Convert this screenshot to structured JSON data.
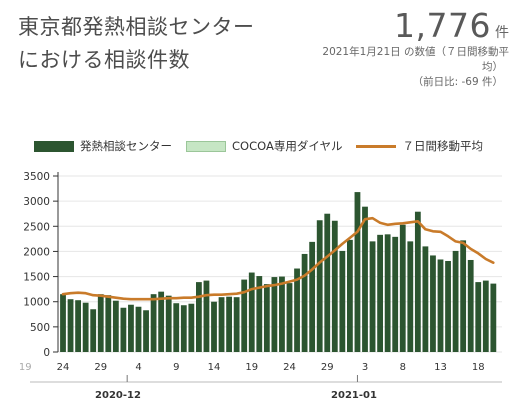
{
  "header": {
    "title_line1": "東京都発熱相談センター",
    "title_line2": "における相談件数"
  },
  "summary": {
    "value": "1,776",
    "unit": "件",
    "note_line1": "2021年1月21日 の数値（７日間移動平",
    "note_line2": "均）",
    "note_line3": "（前日比: -69 件）"
  },
  "legend": {
    "series1": "発熱相談センター",
    "series2": "COCOA専用ダイヤル",
    "series3": "７日間移動平均"
  },
  "colors": {
    "bar": "#2c5530",
    "bar_cocoa": "#c6e6c4",
    "avg_line": "#c97b2a",
    "grid": "#e6e6e6"
  },
  "chart_data": {
    "type": "bar",
    "y_ticks": [
      "0",
      "500",
      "1000",
      "1500",
      "2000",
      "2500",
      "3000",
      "3500"
    ],
    "ylim": [
      0,
      3500
    ],
    "x_tick_labels": [
      "19",
      "24",
      "29",
      "4",
      "9",
      "14",
      "19",
      "24",
      "29",
      "3",
      "8",
      "13",
      "18"
    ],
    "month_labels": [
      "2020-12",
      "2021-01"
    ],
    "series": [
      {
        "name": "発熱相談センター",
        "values": [
          1150,
          1050,
          1030,
          980,
          850,
          1150,
          1130,
          1020,
          880,
          940,
          900,
          830,
          1150,
          1200,
          1120,
          970,
          930,
          960,
          1390,
          1420,
          1000,
          1090,
          1100,
          1090,
          1440,
          1580,
          1510,
          1350,
          1490,
          1500,
          1370,
          1660,
          1950,
          2190,
          2620,
          2750,
          2610,
          2010,
          2230,
          3180,
          2890,
          2200,
          2330,
          2340,
          2290,
          2530,
          2200,
          2790,
          2100,
          1920,
          1840,
          1810,
          2010,
          2220,
          1830,
          1390,
          1420,
          1360
        ]
      },
      {
        "name": "７日間移動平均",
        "values": [
          1150,
          1170,
          1180,
          1170,
          1130,
          1120,
          1100,
          1080,
          1060,
          1050,
          1050,
          1050,
          1050,
          1060,
          1070,
          1070,
          1080,
          1080,
          1100,
          1130,
          1140,
          1140,
          1150,
          1160,
          1190,
          1250,
          1280,
          1310,
          1330,
          1360,
          1400,
          1440,
          1520,
          1640,
          1780,
          1900,
          2020,
          2150,
          2270,
          2390,
          2640,
          2660,
          2570,
          2530,
          2550,
          2560,
          2580,
          2600,
          2440,
          2400,
          2390,
          2300,
          2200,
          2170,
          2050,
          1960,
          1850,
          1776
        ]
      }
    ]
  }
}
